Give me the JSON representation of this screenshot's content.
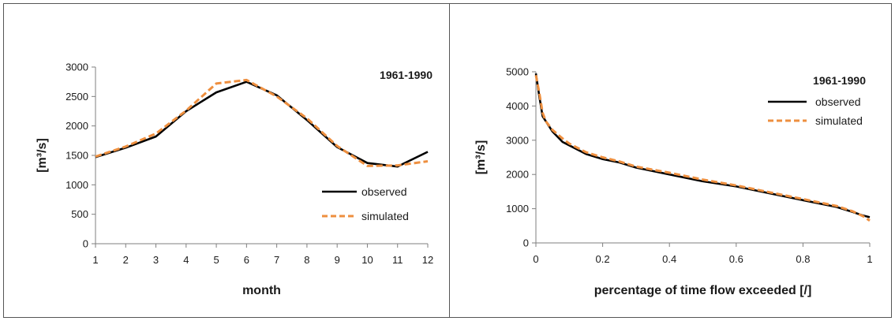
{
  "chart_data": [
    {
      "type": "line",
      "title": "1961-1990",
      "xlabel": "month",
      "ylabel": "[m³/s]",
      "x": [
        1,
        2,
        3,
        4,
        5,
        6,
        7,
        8,
        9,
        10,
        11,
        12
      ],
      "xlim": [
        1,
        12
      ],
      "ylim": [
        0,
        3000
      ],
      "xticks": [
        1,
        2,
        3,
        4,
        5,
        6,
        7,
        8,
        9,
        10,
        11,
        12
      ],
      "yticks": [
        0,
        500,
        1000,
        1500,
        2000,
        2500,
        3000
      ],
      "grid": false,
      "legend_position": "bottom-right",
      "series": [
        {
          "name": "observed",
          "color": "#000000",
          "dash": "solid",
          "values": [
            1470,
            1630,
            1820,
            2250,
            2570,
            2750,
            2520,
            2100,
            1640,
            1370,
            1310,
            1560
          ]
        },
        {
          "name": "simulated",
          "color": "#ee8f3f",
          "dash": "dashed",
          "values": [
            1480,
            1650,
            1870,
            2260,
            2720,
            2780,
            2500,
            2130,
            1660,
            1320,
            1330,
            1400
          ]
        }
      ]
    },
    {
      "type": "line",
      "title": "1961-1990",
      "xlabel": "percentage of time flow exceeded [/]",
      "ylabel": "[m³/s]",
      "xlim": [
        0,
        1
      ],
      "ylim": [
        0,
        5000
      ],
      "xticks": [
        0,
        0.2,
        0.4,
        0.6,
        0.8,
        1
      ],
      "yticks": [
        0,
        1000,
        2000,
        3000,
        4000,
        5000
      ],
      "grid": false,
      "legend_position": "top-right",
      "series": [
        {
          "name": "observed",
          "color": "#000000",
          "dash": "solid",
          "x": [
            0,
            0.01,
            0.02,
            0.03,
            0.05,
            0.08,
            0.1,
            0.15,
            0.2,
            0.25,
            0.3,
            0.4,
            0.5,
            0.6,
            0.7,
            0.8,
            0.9,
            0.95,
            0.98,
            1.0
          ],
          "values": [
            4950,
            4300,
            3700,
            3550,
            3250,
            2950,
            2850,
            2600,
            2450,
            2350,
            2200,
            2000,
            1800,
            1650,
            1450,
            1250,
            1050,
            900,
            800,
            750
          ]
        },
        {
          "name": "simulated",
          "color": "#ee8f3f",
          "dash": "dashed",
          "x": [
            0,
            0.01,
            0.02,
            0.03,
            0.05,
            0.08,
            0.1,
            0.15,
            0.2,
            0.25,
            0.3,
            0.4,
            0.5,
            0.6,
            0.7,
            0.8,
            0.9,
            0.95,
            0.98,
            1.0
          ],
          "values": [
            4900,
            4400,
            3800,
            3550,
            3300,
            3050,
            2900,
            2650,
            2500,
            2380,
            2230,
            2050,
            1850,
            1680,
            1480,
            1280,
            1080,
            920,
            780,
            650
          ]
        }
      ]
    }
  ]
}
